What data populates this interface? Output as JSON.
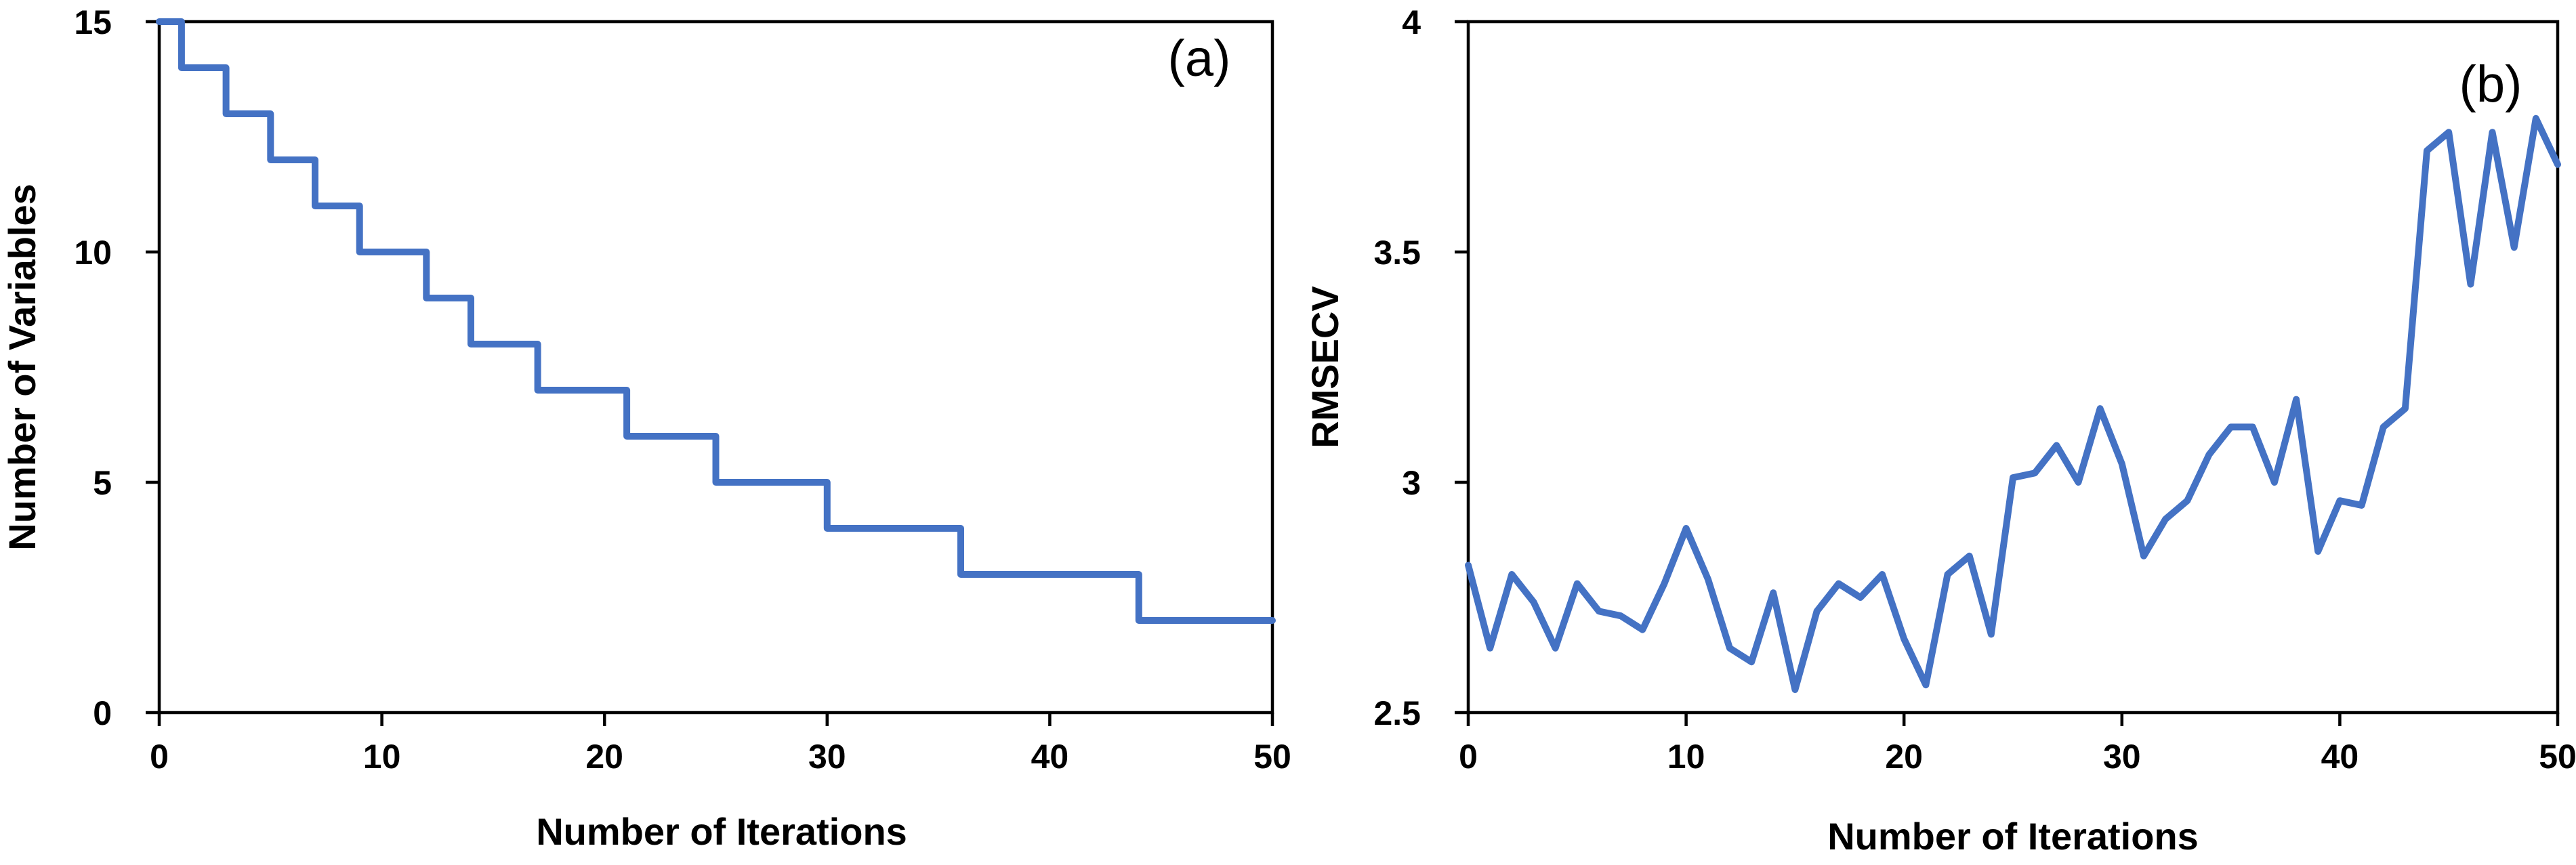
{
  "line_color": "#4472C4",
  "chart_data": [
    {
      "type": "line",
      "panel_label": "(a)",
      "title": "",
      "xlabel": "Number of Iterations",
      "ylabel": "Number of Variables",
      "xlim": [
        0,
        50
      ],
      "ylim": [
        0,
        15
      ],
      "xticks": [
        0,
        10,
        20,
        30,
        40,
        50
      ],
      "yticks": [
        0,
        5,
        10,
        15
      ],
      "series": [
        {
          "name": "Number of Variables",
          "x": [
            0,
            1,
            2,
            3,
            4,
            5,
            6,
            7,
            8,
            9,
            10,
            11,
            12,
            13,
            14,
            15,
            16,
            17,
            18,
            19,
            20,
            21,
            22,
            23,
            24,
            25,
            26,
            27,
            28,
            29,
            30,
            31,
            32,
            33,
            34,
            35,
            36,
            37,
            38,
            39,
            40,
            41,
            42,
            43,
            44,
            45,
            46,
            47,
            48,
            49,
            50
          ],
          "y": [
            15,
            14,
            14,
            13,
            13,
            12,
            12,
            11,
            11,
            10,
            10,
            10,
            9,
            9,
            8,
            8,
            8,
            7,
            7,
            7,
            7,
            6,
            6,
            6,
            6,
            5,
            5,
            5,
            5,
            5,
            4,
            4,
            4,
            4,
            4,
            4,
            3,
            3,
            3,
            3,
            3,
            3,
            3,
            3,
            2,
            2,
            2,
            2,
            2,
            2,
            2
          ],
          "step": true
        }
      ]
    },
    {
      "type": "line",
      "panel_label": "(b)",
      "title": "",
      "xlabel": "Number of Iterations",
      "ylabel": "RMSECV",
      "xlim": [
        0,
        50
      ],
      "ylim": [
        2.5,
        4
      ],
      "xticks": [
        0,
        10,
        20,
        30,
        40,
        50
      ],
      "yticks": [
        2.5,
        3,
        3.5,
        4
      ],
      "series": [
        {
          "name": "RMSECV",
          "x": [
            0,
            1,
            2,
            3,
            4,
            5,
            6,
            7,
            8,
            9,
            10,
            11,
            12,
            13,
            14,
            15,
            16,
            17,
            18,
            19,
            20,
            21,
            22,
            23,
            24,
            25,
            26,
            27,
            28,
            29,
            30,
            31,
            32,
            33,
            34,
            35,
            36,
            37,
            38,
            39,
            40,
            41,
            42,
            43,
            44,
            45,
            46,
            47,
            48,
            49,
            50
          ],
          "y": [
            2.82,
            2.64,
            2.8,
            2.74,
            2.64,
            2.78,
            2.72,
            2.71,
            2.68,
            2.78,
            2.9,
            2.79,
            2.64,
            2.61,
            2.76,
            2.55,
            2.72,
            2.78,
            2.75,
            2.8,
            2.66,
            2.56,
            2.8,
            2.84,
            2.67,
            3.01,
            3.02,
            3.08,
            3.0,
            3.16,
            3.04,
            2.84,
            2.92,
            2.96,
            3.06,
            3.12,
            3.12,
            3.0,
            3.18,
            2.85,
            2.96,
            2.95,
            3.12,
            3.16,
            3.72,
            3.76,
            3.43,
            3.76,
            3.51,
            3.79,
            3.69
          ],
          "step": false
        }
      ]
    }
  ]
}
